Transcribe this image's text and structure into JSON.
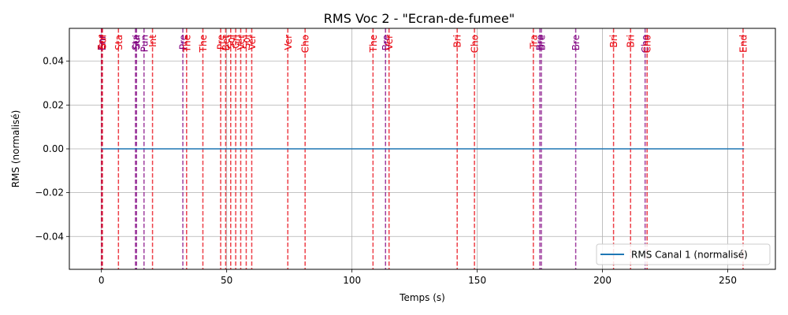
{
  "chart_data": {
    "type": "line",
    "title": "RMS Voc 2 - \"Ecran-de-fumee\"",
    "xlabel": "Temps (s)",
    "ylabel": "RMS (normalisé)",
    "xlim": [
      -12.8,
      269
    ],
    "ylim": [
      -0.055,
      0.055
    ],
    "x_ticks": [
      0,
      50,
      100,
      150,
      200,
      250
    ],
    "x_tick_labels": [
      "0",
      "50",
      "100",
      "150",
      "200",
      "250"
    ],
    "y_ticks": [
      -0.04,
      -0.02,
      0.0,
      0.02,
      0.04
    ],
    "y_tick_labels": [
      "−0.04",
      "−0.02",
      "0.00",
      "0.02",
      "0.04"
    ],
    "grid": true,
    "legend_position": "lower-right",
    "series": [
      {
        "name": "RMS Canal 1 (normalisé)",
        "color": "#1f77b4",
        "x": [
          0,
          256.5
        ],
        "y": [
          0,
          0
        ]
      }
    ],
    "markers": [
      {
        "x": 0.0,
        "label": "Enr",
        "color": "#e8000b"
      },
      {
        "x": 0.2,
        "label": "Enr",
        "color": "#800080"
      },
      {
        "x": 0.4,
        "label": "Sui",
        "color": "#e8000b"
      },
      {
        "x": 6.8,
        "label": "Sta",
        "color": "#e8000b"
      },
      {
        "x": 13.6,
        "label": "Sta",
        "color": "#800080"
      },
      {
        "x": 14.0,
        "label": "Sui",
        "color": "#800080"
      },
      {
        "x": 17.0,
        "label": "Pun",
        "color": "#800080"
      },
      {
        "x": 20.4,
        "label": "Int",
        "color": "#e8000b"
      },
      {
        "x": 32.5,
        "label": "Pre",
        "color": "#800080"
      },
      {
        "x": 34.0,
        "label": "The",
        "color": "#e8000b"
      },
      {
        "x": 40.5,
        "label": "The",
        "color": "#e8000b"
      },
      {
        "x": 47.6,
        "label": "Pre",
        "color": "#e8000b"
      },
      {
        "x": 49.6,
        "label": "Bet",
        "color": "#e8000b"
      },
      {
        "x": 51.6,
        "label": "Sol",
        "color": "#e8000b"
      },
      {
        "x": 53.6,
        "label": "Gri",
        "color": "#e8000b"
      },
      {
        "x": 55.6,
        "label": "Ver",
        "color": "#e8000b"
      },
      {
        "x": 57.8,
        "label": "Sol",
        "color": "#e8000b"
      },
      {
        "x": 60.0,
        "label": "Ver",
        "color": "#e8000b"
      },
      {
        "x": 74.4,
        "label": "Ver",
        "color": "#e8000b"
      },
      {
        "x": 81.3,
        "label": "Cho",
        "color": "#e8000b"
      },
      {
        "x": 108.4,
        "label": "The",
        "color": "#e8000b"
      },
      {
        "x": 113.4,
        "label": "Bre",
        "color": "#800080"
      },
      {
        "x": 114.8,
        "label": "Ver",
        "color": "#e8000b"
      },
      {
        "x": 142.0,
        "label": "Bri",
        "color": "#e8000b"
      },
      {
        "x": 148.9,
        "label": "Cho",
        "color": "#e8000b"
      },
      {
        "x": 172.4,
        "label": "Tra",
        "color": "#e8000b"
      },
      {
        "x": 175.0,
        "label": "Bre",
        "color": "#800080"
      },
      {
        "x": 175.6,
        "label": "Bre",
        "color": "#800080"
      },
      {
        "x": 189.3,
        "label": "Bre",
        "color": "#800080"
      },
      {
        "x": 204.4,
        "label": "Bri",
        "color": "#e8000b"
      },
      {
        "x": 211.2,
        "label": "Bri",
        "color": "#e8000b"
      },
      {
        "x": 217.0,
        "label": "Cho",
        "color": "#800080"
      },
      {
        "x": 217.8,
        "label": "Cho",
        "color": "#e8000b"
      },
      {
        "x": 256.1,
        "label": "End",
        "color": "#e8000b"
      }
    ]
  }
}
